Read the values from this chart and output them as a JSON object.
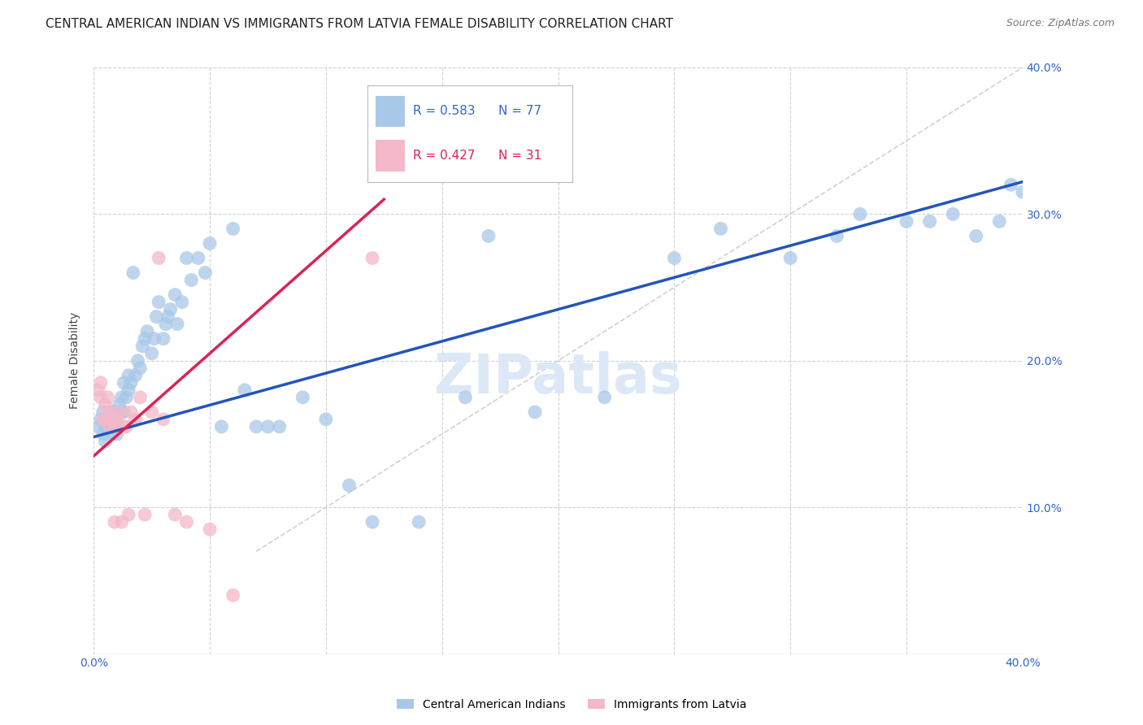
{
  "title": "CENTRAL AMERICAN INDIAN VS IMMIGRANTS FROM LATVIA FEMALE DISABILITY CORRELATION CHART",
  "source": "Source: ZipAtlas.com",
  "ylabel": "Female Disability",
  "xlim": [
    0.0,
    0.4
  ],
  "ylim": [
    0.0,
    0.4
  ],
  "x_ticks": [
    0.0,
    0.05,
    0.1,
    0.15,
    0.2,
    0.25,
    0.3,
    0.35,
    0.4
  ],
  "y_ticks": [
    0.0,
    0.1,
    0.2,
    0.3,
    0.4
  ],
  "watermark": "ZIPatlas",
  "blue_color": "#a8c8e8",
  "pink_color": "#f4b8c8",
  "blue_line_color": "#2255bb",
  "pink_line_color": "#dd2255",
  "diag_line_color": "#cccccc",
  "grid_color": "#cccccc",
  "axis_tick_color": "#3366cc",
  "R_blue": 0.583,
  "N_blue": 77,
  "R_pink": 0.427,
  "N_pink": 31,
  "blue_scatter_x": [
    0.002,
    0.003,
    0.004,
    0.004,
    0.005,
    0.005,
    0.005,
    0.006,
    0.007,
    0.007,
    0.008,
    0.008,
    0.008,
    0.009,
    0.009,
    0.01,
    0.01,
    0.01,
    0.011,
    0.012,
    0.012,
    0.013,
    0.013,
    0.014,
    0.015,
    0.015,
    0.016,
    0.017,
    0.018,
    0.019,
    0.02,
    0.021,
    0.022,
    0.023,
    0.025,
    0.026,
    0.027,
    0.028,
    0.03,
    0.031,
    0.032,
    0.033,
    0.035,
    0.036,
    0.038,
    0.04,
    0.042,
    0.045,
    0.048,
    0.05,
    0.055,
    0.06,
    0.065,
    0.07,
    0.075,
    0.08,
    0.09,
    0.1,
    0.11,
    0.12,
    0.14,
    0.16,
    0.17,
    0.19,
    0.22,
    0.25,
    0.27,
    0.3,
    0.32,
    0.33,
    0.35,
    0.36,
    0.37,
    0.38,
    0.39,
    0.395,
    0.4
  ],
  "blue_scatter_y": [
    0.155,
    0.16,
    0.15,
    0.165,
    0.155,
    0.16,
    0.145,
    0.155,
    0.155,
    0.16,
    0.155,
    0.15,
    0.165,
    0.16,
    0.155,
    0.165,
    0.155,
    0.15,
    0.17,
    0.165,
    0.175,
    0.165,
    0.185,
    0.175,
    0.18,
    0.19,
    0.185,
    0.26,
    0.19,
    0.2,
    0.195,
    0.21,
    0.215,
    0.22,
    0.205,
    0.215,
    0.23,
    0.24,
    0.215,
    0.225,
    0.23,
    0.235,
    0.245,
    0.225,
    0.24,
    0.27,
    0.255,
    0.27,
    0.26,
    0.28,
    0.155,
    0.29,
    0.18,
    0.155,
    0.155,
    0.155,
    0.175,
    0.16,
    0.115,
    0.09,
    0.09,
    0.175,
    0.285,
    0.165,
    0.175,
    0.27,
    0.29,
    0.27,
    0.285,
    0.3,
    0.295,
    0.295,
    0.3,
    0.285,
    0.295,
    0.32,
    0.315
  ],
  "pink_scatter_x": [
    0.002,
    0.003,
    0.003,
    0.004,
    0.005,
    0.005,
    0.006,
    0.007,
    0.007,
    0.008,
    0.009,
    0.009,
    0.01,
    0.01,
    0.011,
    0.012,
    0.013,
    0.014,
    0.015,
    0.016,
    0.018,
    0.02,
    0.022,
    0.025,
    0.028,
    0.03,
    0.035,
    0.04,
    0.05,
    0.06,
    0.12
  ],
  "pink_scatter_y": [
    0.18,
    0.185,
    0.175,
    0.16,
    0.17,
    0.16,
    0.175,
    0.165,
    0.155,
    0.16,
    0.155,
    0.09,
    0.16,
    0.155,
    0.165,
    0.09,
    0.155,
    0.155,
    0.095,
    0.165,
    0.16,
    0.175,
    0.095,
    0.165,
    0.27,
    0.16,
    0.095,
    0.09,
    0.085,
    0.04,
    0.27
  ],
  "blue_line_x": [
    0.0,
    0.4
  ],
  "blue_line_y": [
    0.148,
    0.322
  ],
  "pink_line_x": [
    0.0,
    0.125
  ],
  "pink_line_y": [
    0.135,
    0.31
  ],
  "diag_line_x": [
    0.07,
    0.4
  ],
  "diag_line_y": [
    0.07,
    0.4
  ],
  "title_fontsize": 11,
  "source_fontsize": 9,
  "axis_label_fontsize": 10,
  "tick_fontsize": 10,
  "watermark_fontsize": 48,
  "watermark_color": "#dce8f5",
  "background_color": "#ffffff"
}
